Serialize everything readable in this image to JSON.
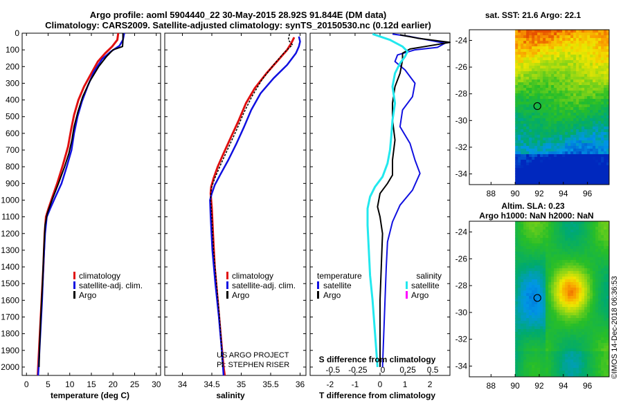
{
  "title": {
    "line1": "Argo profile: aoml 5904440_22 30-May-2015 28.92S 91.844E (DM data)",
    "line2": "Climatology: CARS2009. Satellite-adjusted climatology: synTS_20150530.nc (0.12d earlier)"
  },
  "credits": {
    "project": "US ARGO PROJECT",
    "pi": "PI: STEPHEN RISER",
    "stamp": "©IMOS 14-Dec-2018 06:36:53"
  },
  "colors": {
    "climatology": "#e01010",
    "satellite": "#1010e0",
    "argo": "#000000",
    "sat_salinity": "#22e8ee",
    "argo_salinity": "#ff00ff"
  },
  "depth_axis": {
    "ticks": [
      0,
      100,
      200,
      300,
      400,
      500,
      600,
      700,
      800,
      900,
      1000,
      1100,
      1200,
      1300,
      1400,
      1500,
      1600,
      1700,
      1800,
      1900,
      2000
    ],
    "ylim": [
      2050,
      0
    ]
  },
  "chart_data": [
    {
      "type": "line",
      "id": "temperature",
      "xlabel": "temperature (deg C)",
      "xlim": [
        -1,
        31
      ],
      "xticks": [
        0,
        5,
        10,
        15,
        20,
        25,
        30
      ],
      "legend": [
        "climatology",
        "satellite-adj. clim.",
        "Argo"
      ],
      "series": [
        {
          "name": "climatology",
          "color": "#e01010",
          "width": 3,
          "points": [
            [
              21.2,
              0
            ],
            [
              21.0,
              40
            ],
            [
              19.8,
              80
            ],
            [
              18.2,
              120
            ],
            [
              16.5,
              170
            ],
            [
              15.0,
              240
            ],
            [
              13.3,
              320
            ],
            [
              12.0,
              400
            ],
            [
              11.0,
              490
            ],
            [
              10.3,
              580
            ],
            [
              9.6,
              680
            ],
            [
              8.4,
              790
            ],
            [
              7.1,
              900
            ],
            [
              6.0,
              980
            ],
            [
              5.1,
              1050
            ],
            [
              4.5,
              1100
            ],
            [
              4.2,
              1200
            ],
            [
              3.9,
              1400
            ],
            [
              3.5,
              1600
            ],
            [
              3.1,
              1800
            ],
            [
              2.7,
              2000
            ],
            [
              2.6,
              2050
            ]
          ]
        },
        {
          "name": "satellite-adj. clim.",
          "color": "#1010e0",
          "width": 2.5,
          "points": [
            [
              22.6,
              0
            ],
            [
              22.3,
              40
            ],
            [
              21.5,
              75
            ],
            [
              19.5,
              110
            ],
            [
              17.5,
              155
            ],
            [
              15.6,
              230
            ],
            [
              14.1,
              320
            ],
            [
              12.8,
              410
            ],
            [
              11.8,
              500
            ],
            [
              11.0,
              600
            ],
            [
              10.4,
              700
            ],
            [
              9.3,
              800
            ],
            [
              8.1,
              900
            ],
            [
              6.7,
              980
            ],
            [
              5.5,
              1050
            ],
            [
              4.7,
              1100
            ],
            [
              4.3,
              1200
            ],
            [
              3.9,
              1400
            ],
            [
              3.6,
              1600
            ],
            [
              3.2,
              1800
            ],
            [
              2.8,
              2000
            ],
            [
              2.7,
              2050
            ]
          ]
        },
        {
          "name": "Argo",
          "color": "#000000",
          "width": 2,
          "points": [
            [
              22.3,
              0
            ],
            [
              22.3,
              45
            ],
            [
              22.2,
              80
            ],
            [
              20.0,
              100
            ],
            [
              18.5,
              140
            ],
            [
              16.7,
              200
            ],
            [
              14.6,
              290
            ],
            [
              13.0,
              380
            ],
            [
              11.9,
              470
            ],
            [
              11.0,
              560
            ],
            [
              10.5,
              640
            ],
            [
              9.8,
              720
            ],
            [
              8.8,
              800
            ],
            [
              7.4,
              900
            ],
            [
              5.9,
              1000
            ],
            [
              4.8,
              1080
            ],
            [
              4.3,
              1150
            ],
            [
              4.0,
              1300
            ],
            [
              3.7,
              1500
            ],
            [
              3.3,
              1700
            ],
            [
              3.0,
              1900
            ],
            [
              2.9,
              2000
            ]
          ]
        }
      ]
    },
    {
      "type": "line",
      "id": "salinity",
      "xlabel": "salinity",
      "xlim": [
        33.7,
        36.1
      ],
      "xticks": [
        34,
        34.5,
        35,
        35.5,
        36
      ],
      "legend": [
        "climatology",
        "satellite-adj. clim.",
        "Argo"
      ],
      "series": [
        {
          "name": "climatology",
          "color": "#e01010",
          "width": 3,
          "points": [
            [
              35.9,
              25
            ],
            [
              35.85,
              60
            ],
            [
              35.78,
              100
            ],
            [
              35.63,
              160
            ],
            [
              35.43,
              240
            ],
            [
              35.23,
              330
            ],
            [
              35.08,
              420
            ],
            [
              34.96,
              520
            ],
            [
              34.83,
              620
            ],
            [
              34.7,
              720
            ],
            [
              34.6,
              800
            ],
            [
              34.53,
              870
            ],
            [
              34.49,
              920
            ],
            [
              34.48,
              960
            ],
            [
              34.5,
              1050
            ],
            [
              34.52,
              1200
            ],
            [
              34.55,
              1400
            ],
            [
              34.6,
              1600
            ],
            [
              34.65,
              1800
            ],
            [
              34.7,
              2000
            ],
            [
              34.72,
              2050
            ]
          ]
        },
        {
          "name": "satellite-adj. clim.",
          "color": "#1010e0",
          "width": 2.5,
          "points": [
            [
              35.98,
              20
            ],
            [
              36.0,
              50
            ],
            [
              35.98,
              80
            ],
            [
              35.93,
              120
            ],
            [
              35.78,
              190
            ],
            [
              35.55,
              270
            ],
            [
              35.33,
              360
            ],
            [
              35.17,
              460
            ],
            [
              35.05,
              560
            ],
            [
              34.92,
              660
            ],
            [
              34.78,
              760
            ],
            [
              34.64,
              850
            ],
            [
              34.55,
              910
            ],
            [
              34.5,
              960
            ],
            [
              34.47,
              1000
            ],
            [
              34.48,
              1100
            ],
            [
              34.51,
              1300
            ],
            [
              34.56,
              1500
            ],
            [
              34.62,
              1700
            ],
            [
              34.67,
              1900
            ],
            [
              34.7,
              2050
            ]
          ]
        },
        {
          "name": "Argo",
          "color": "#000000",
          "width": 1.5,
          "dash": "3,2",
          "points": [
            [
              35.82,
              5
            ],
            [
              35.8,
              40
            ],
            [
              35.87,
              70
            ],
            [
              35.72,
              120
            ],
            [
              35.55,
              190
            ],
            [
              35.35,
              280
            ],
            [
              35.18,
              380
            ],
            [
              35.04,
              480
            ],
            [
              34.92,
              580
            ],
            [
              34.79,
              680
            ],
            [
              34.66,
              780
            ],
            [
              34.55,
              870
            ],
            [
              34.49,
              930
            ],
            [
              34.48,
              990
            ],
            [
              34.5,
              1100
            ],
            [
              34.53,
              1300
            ],
            [
              34.58,
              1500
            ],
            [
              34.63,
              1700
            ],
            [
              34.67,
              1900
            ],
            [
              34.68,
              2000
            ]
          ]
        }
      ]
    },
    {
      "type": "line",
      "id": "difference",
      "xlabel": "T difference from climatology",
      "xlabel_top": "S difference from climatology",
      "xlim": [
        -2.8,
        2.8
      ],
      "xticks": [
        -2,
        -1,
        0,
        1,
        2
      ],
      "xticks_s": [
        "-0.5",
        "-0.25",
        "0",
        "0.25",
        "0.5"
      ],
      "legend_t_title": "temperature",
      "legend_s_title": "salinity",
      "legend_t": [
        "satellite",
        "Argo"
      ],
      "legend_s": [
        "satellite",
        "Argo"
      ],
      "series": [
        {
          "name": "T satellite",
          "color": "#1010e0",
          "width": 2,
          "points": [
            [
              0.5,
              5
            ],
            [
              1.2,
              20
            ],
            [
              1.9,
              40
            ],
            [
              2.6,
              60
            ],
            [
              2.3,
              85
            ],
            [
              1.4,
              100
            ],
            [
              0.7,
              130
            ],
            [
              0.6,
              170
            ],
            [
              1.0,
              220
            ],
            [
              1.4,
              300
            ],
            [
              1.3,
              380
            ],
            [
              0.9,
              460
            ],
            [
              0.8,
              560
            ],
            [
              1.2,
              660
            ],
            [
              1.4,
              760
            ],
            [
              1.6,
              840
            ],
            [
              1.3,
              940
            ],
            [
              0.8,
              1030
            ],
            [
              0.5,
              1130
            ],
            [
              0.3,
              1250
            ],
            [
              0.25,
              1400
            ],
            [
              0.2,
              1600
            ],
            [
              0.15,
              1800
            ],
            [
              0.1,
              2000
            ]
          ]
        },
        {
          "name": "T Argo",
          "color": "#000000",
          "width": 2,
          "points": [
            [
              0.8,
              10
            ],
            [
              1.5,
              30
            ],
            [
              2.8,
              55
            ],
            [
              1.8,
              80
            ],
            [
              1.2,
              95
            ],
            [
              0.9,
              120
            ],
            [
              0.9,
              160
            ],
            [
              0.8,
              240
            ],
            [
              0.6,
              320
            ],
            [
              0.5,
              420
            ],
            [
              0.5,
              520
            ],
            [
              0.6,
              640
            ],
            [
              0.5,
              760
            ],
            [
              0.5,
              850
            ],
            [
              0.3,
              900
            ],
            [
              0.0,
              960
            ],
            [
              -0.1,
              1040
            ],
            [
              0.0,
              1100
            ],
            [
              0.1,
              1200
            ],
            [
              0.05,
              1400
            ],
            [
              0.0,
              1600
            ],
            [
              0.0,
              1800
            ],
            [
              0.0,
              2000
            ]
          ]
        },
        {
          "name": "S satellite",
          "color": "#22e8ee",
          "width": 3,
          "points": [
            [
              -0.3,
              5
            ],
            [
              0.4,
              40
            ],
            [
              0.9,
              80
            ],
            [
              1.1,
              110
            ],
            [
              1.0,
              140
            ],
            [
              0.8,
              180
            ],
            [
              0.6,
              240
            ],
            [
              0.5,
              320
            ],
            [
              0.6,
              420
            ],
            [
              0.5,
              520
            ],
            [
              0.45,
              620
            ],
            [
              0.4,
              700
            ],
            [
              0.3,
              780
            ],
            [
              0.1,
              860
            ],
            [
              -0.2,
              920
            ],
            [
              -0.4,
              980
            ],
            [
              -0.5,
              1050
            ],
            [
              -0.5,
              1150
            ],
            [
              -0.45,
              1300
            ],
            [
              -0.4,
              1450
            ],
            [
              -0.3,
              1600
            ],
            [
              -0.2,
              1800
            ],
            [
              -0.1,
              2000
            ]
          ]
        }
      ]
    },
    {
      "type": "heatmap",
      "id": "sst-map",
      "title": "sat. SST: 21.6 Argo: 22.1",
      "xticks": [
        88,
        90,
        92,
        94,
        96
      ],
      "yticks": [
        -24,
        -26,
        -28,
        -30,
        -32,
        -34
      ],
      "xlim": [
        86.2,
        97.8
      ],
      "ylim": [
        -34.8,
        -23.2
      ],
      "data_lon_start": 90,
      "marker": [
        91.844,
        -28.92
      ],
      "scale": "sst"
    },
    {
      "type": "heatmap",
      "id": "sla-map",
      "title1": "Altim. SLA: 0.23",
      "title2": "Argo h1000: NaN h2000: NaN",
      "xticks": [
        88,
        90,
        92,
        94,
        96
      ],
      "yticks": [
        -24,
        -26,
        -28,
        -30,
        -32,
        -34
      ],
      "xlim": [
        86.2,
        97.8
      ],
      "ylim": [
        -34.8,
        -23.2
      ],
      "data_lon_start": 90,
      "marker": [
        91.844,
        -28.92
      ],
      "scale": "sla"
    }
  ]
}
